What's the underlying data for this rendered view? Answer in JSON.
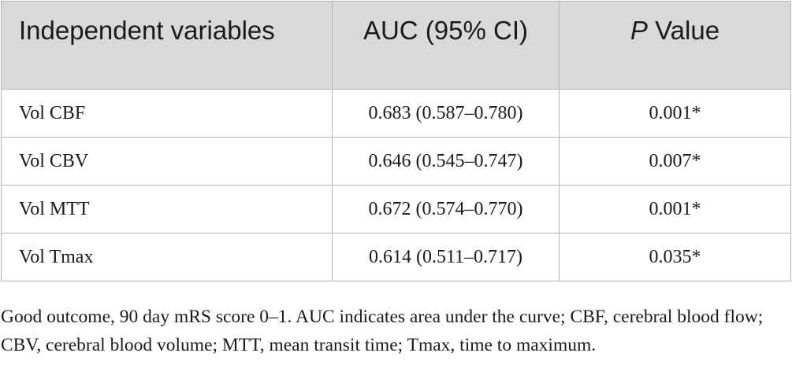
{
  "table": {
    "headers": {
      "variable": "Independent variables",
      "auc": "AUC (95% CI)",
      "p_italic": "P",
      "p_rest": " Value"
    },
    "rows": [
      {
        "variable": "Vol CBF",
        "auc": "0.683 (0.587–0.780)",
        "p": "0.001*"
      },
      {
        "variable": "Vol CBV",
        "auc": "0.646 (0.545–0.747)",
        "p": "0.007*"
      },
      {
        "variable": "Vol MTT",
        "auc": "0.672 (0.574–0.770)",
        "p": "0.001*"
      },
      {
        "variable": "Vol Tmax",
        "auc": "0.614 (0.511–0.717)",
        "p": "0.035*"
      }
    ]
  },
  "footnote": "Good outcome, 90 day mRS score 0–1. AUC indicates area under the curve; CBF, cerebral blood flow; CBV, cerebral blood volume; MTT, mean transit time; Tmax, time to maximum."
}
